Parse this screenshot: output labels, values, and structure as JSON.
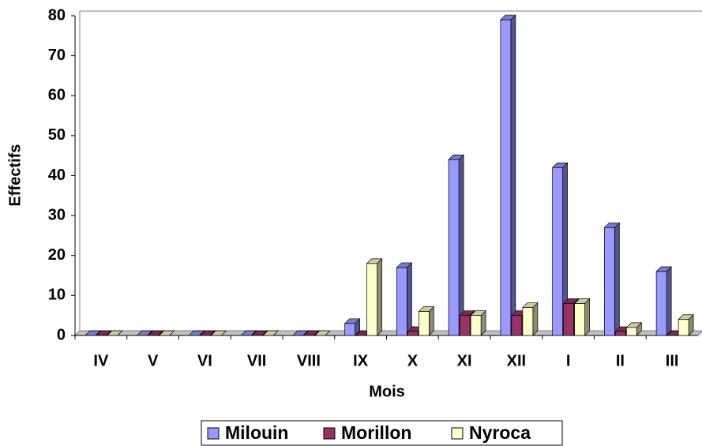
{
  "chart_data": {
    "type": "bar3d",
    "x_label": "Mois",
    "y_label": "Effectifs",
    "categories": [
      "IV",
      "V",
      "VI",
      "VII",
      "VIII",
      "IX",
      "X",
      "XI",
      "XII",
      "I",
      "II",
      "III"
    ],
    "series": [
      {
        "name": "Milouin",
        "color": "#9999ff",
        "values": [
          0,
          0,
          0,
          0,
          0,
          3,
          17,
          44,
          79,
          42,
          27,
          16
        ]
      },
      {
        "name": "Morillon",
        "color": "#993366",
        "values": [
          0,
          0,
          0,
          0,
          0,
          0,
          1,
          5,
          5,
          8,
          1,
          0
        ]
      },
      {
        "name": "Nyroca",
        "color": "#ffffcc",
        "values": [
          0,
          0,
          0,
          0,
          0,
          18,
          6,
          5,
          7,
          8,
          2,
          4
        ]
      }
    ],
    "ylim": [
      0,
      80
    ],
    "yticks": [
      0,
      10,
      20,
      30,
      40,
      50,
      60,
      70,
      80
    ]
  }
}
